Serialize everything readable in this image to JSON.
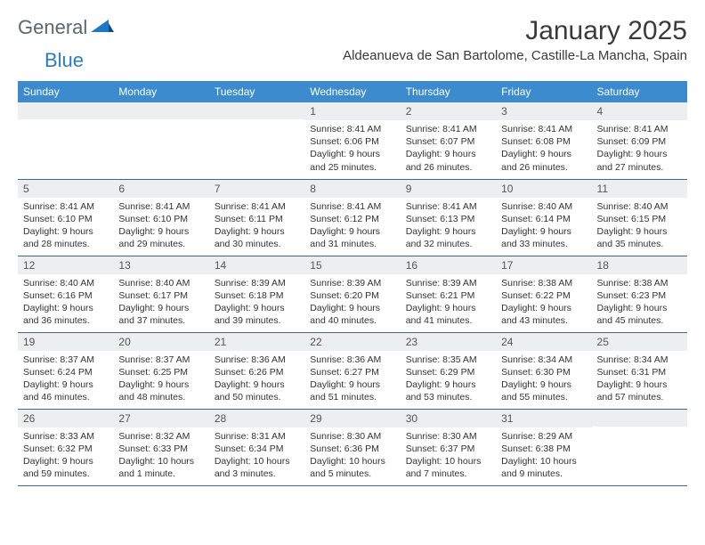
{
  "brand": {
    "part1": "General",
    "part2": "Blue"
  },
  "title": "January 2025",
  "location": "Aldeanueva de San Bartolome, Castille-La Mancha, Spain",
  "colors": {
    "header_bg": "#3b8bce",
    "header_fg": "#ffffff",
    "daynum_bg": "#edeef0",
    "row_border": "#3b6a8f",
    "logo_gray": "#5b6770",
    "logo_blue": "#2b7cc0"
  },
  "weekdaysLabels": [
    "Sunday",
    "Monday",
    "Tuesday",
    "Wednesday",
    "Thursday",
    "Friday",
    "Saturday"
  ],
  "weeks": [
    [
      {},
      {},
      {},
      {
        "n": "1",
        "sr": "8:41 AM",
        "ss": "6:06 PM",
        "dl": "9 hours and 25 minutes."
      },
      {
        "n": "2",
        "sr": "8:41 AM",
        "ss": "6:07 PM",
        "dl": "9 hours and 26 minutes."
      },
      {
        "n": "3",
        "sr": "8:41 AM",
        "ss": "6:08 PM",
        "dl": "9 hours and 26 minutes."
      },
      {
        "n": "4",
        "sr": "8:41 AM",
        "ss": "6:09 PM",
        "dl": "9 hours and 27 minutes."
      }
    ],
    [
      {
        "n": "5",
        "sr": "8:41 AM",
        "ss": "6:10 PM",
        "dl": "9 hours and 28 minutes."
      },
      {
        "n": "6",
        "sr": "8:41 AM",
        "ss": "6:10 PM",
        "dl": "9 hours and 29 minutes."
      },
      {
        "n": "7",
        "sr": "8:41 AM",
        "ss": "6:11 PM",
        "dl": "9 hours and 30 minutes."
      },
      {
        "n": "8",
        "sr": "8:41 AM",
        "ss": "6:12 PM",
        "dl": "9 hours and 31 minutes."
      },
      {
        "n": "9",
        "sr": "8:41 AM",
        "ss": "6:13 PM",
        "dl": "9 hours and 32 minutes."
      },
      {
        "n": "10",
        "sr": "8:40 AM",
        "ss": "6:14 PM",
        "dl": "9 hours and 33 minutes."
      },
      {
        "n": "11",
        "sr": "8:40 AM",
        "ss": "6:15 PM",
        "dl": "9 hours and 35 minutes."
      }
    ],
    [
      {
        "n": "12",
        "sr": "8:40 AM",
        "ss": "6:16 PM",
        "dl": "9 hours and 36 minutes."
      },
      {
        "n": "13",
        "sr": "8:40 AM",
        "ss": "6:17 PM",
        "dl": "9 hours and 37 minutes."
      },
      {
        "n": "14",
        "sr": "8:39 AM",
        "ss": "6:18 PM",
        "dl": "9 hours and 39 minutes."
      },
      {
        "n": "15",
        "sr": "8:39 AM",
        "ss": "6:20 PM",
        "dl": "9 hours and 40 minutes."
      },
      {
        "n": "16",
        "sr": "8:39 AM",
        "ss": "6:21 PM",
        "dl": "9 hours and 41 minutes."
      },
      {
        "n": "17",
        "sr": "8:38 AM",
        "ss": "6:22 PM",
        "dl": "9 hours and 43 minutes."
      },
      {
        "n": "18",
        "sr": "8:38 AM",
        "ss": "6:23 PM",
        "dl": "9 hours and 45 minutes."
      }
    ],
    [
      {
        "n": "19",
        "sr": "8:37 AM",
        "ss": "6:24 PM",
        "dl": "9 hours and 46 minutes."
      },
      {
        "n": "20",
        "sr": "8:37 AM",
        "ss": "6:25 PM",
        "dl": "9 hours and 48 minutes."
      },
      {
        "n": "21",
        "sr": "8:36 AM",
        "ss": "6:26 PM",
        "dl": "9 hours and 50 minutes."
      },
      {
        "n": "22",
        "sr": "8:36 AM",
        "ss": "6:27 PM",
        "dl": "9 hours and 51 minutes."
      },
      {
        "n": "23",
        "sr": "8:35 AM",
        "ss": "6:29 PM",
        "dl": "9 hours and 53 minutes."
      },
      {
        "n": "24",
        "sr": "8:34 AM",
        "ss": "6:30 PM",
        "dl": "9 hours and 55 minutes."
      },
      {
        "n": "25",
        "sr": "8:34 AM",
        "ss": "6:31 PM",
        "dl": "9 hours and 57 minutes."
      }
    ],
    [
      {
        "n": "26",
        "sr": "8:33 AM",
        "ss": "6:32 PM",
        "dl": "9 hours and 59 minutes."
      },
      {
        "n": "27",
        "sr": "8:32 AM",
        "ss": "6:33 PM",
        "dl": "10 hours and 1 minute."
      },
      {
        "n": "28",
        "sr": "8:31 AM",
        "ss": "6:34 PM",
        "dl": "10 hours and 3 minutes."
      },
      {
        "n": "29",
        "sr": "8:30 AM",
        "ss": "6:36 PM",
        "dl": "10 hours and 5 minutes."
      },
      {
        "n": "30",
        "sr": "8:30 AM",
        "ss": "6:37 PM",
        "dl": "10 hours and 7 minutes."
      },
      {
        "n": "31",
        "sr": "8:29 AM",
        "ss": "6:38 PM",
        "dl": "10 hours and 9 minutes."
      },
      {}
    ]
  ],
  "labels": {
    "sunrise": "Sunrise:",
    "sunset": "Sunset:",
    "daylight": "Daylight:"
  }
}
